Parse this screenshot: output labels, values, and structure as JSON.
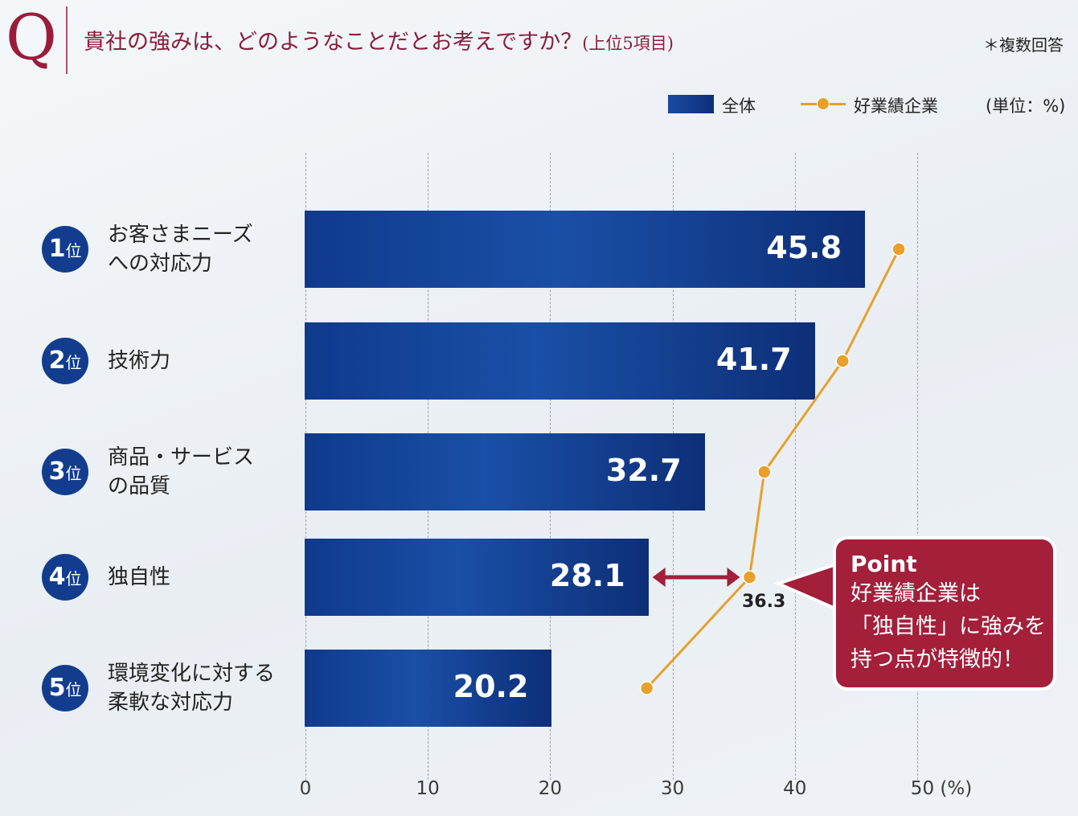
{
  "header": {
    "q_mark": "Q",
    "question": "貴社の強みは、どのようなことだとお考えですか？",
    "question_sub": "(上位5項目)",
    "note": "＊複数回答"
  },
  "legend": {
    "series1": "全体",
    "series2": "好業績企業",
    "unit": "(単位：%)"
  },
  "colors": {
    "bar": "#123d8f",
    "line": "#e7a02b",
    "accent": "#a31f3a"
  },
  "chart_data": {
    "type": "bar",
    "orientation": "horizontal",
    "categories": [
      {
        "rank": "1",
        "rank_suffix": "位",
        "lines": [
          "お客さまニーズ",
          "への対応力"
        ]
      },
      {
        "rank": "2",
        "rank_suffix": "位",
        "lines": [
          "技術力"
        ]
      },
      {
        "rank": "3",
        "rank_suffix": "位",
        "lines": [
          "商品・サービス",
          "の品質"
        ]
      },
      {
        "rank": "4",
        "rank_suffix": "位",
        "lines": [
          "独自性"
        ]
      },
      {
        "rank": "5",
        "rank_suffix": "位",
        "lines": [
          "環境変化に対する",
          "柔軟な対応力"
        ]
      }
    ],
    "series": [
      {
        "name": "全体",
        "type": "bar",
        "values": [
          45.8,
          41.7,
          32.7,
          28.1,
          20.2
        ],
        "value_labels": [
          "45.8",
          "41.7",
          "32.7",
          "28.1",
          "20.2"
        ]
      },
      {
        "name": "好業績企業",
        "type": "line",
        "values": [
          48.5,
          43.9,
          37.5,
          36.3,
          27.9
        ]
      }
    ],
    "highlight_label": "36.3",
    "xlim": [
      0,
      50
    ],
    "xticks": [
      "0",
      "10",
      "20",
      "30",
      "40",
      "50 (%)"
    ],
    "grid": true
  },
  "point": {
    "title": "Point",
    "lines": [
      "好業績企業は",
      "「独自性」に強みを",
      "持つ点が特徴的！"
    ]
  }
}
